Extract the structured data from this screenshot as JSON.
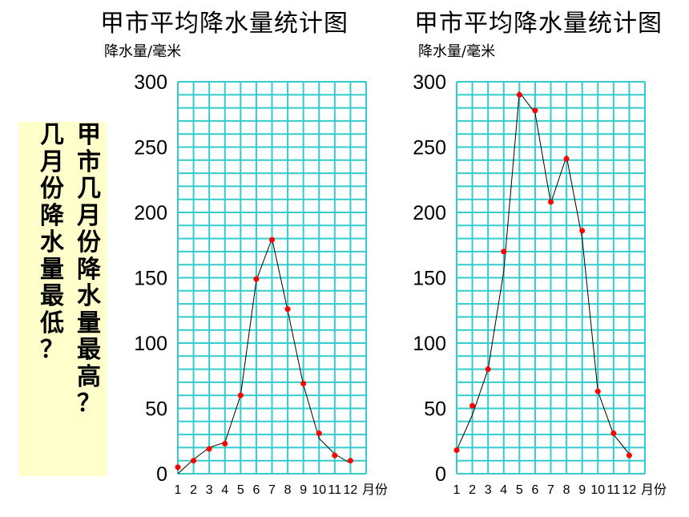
{
  "question": {
    "line1": "甲市几月份降水量最高？",
    "line2": "几月份降水量最低？"
  },
  "chart_data": [
    {
      "type": "line",
      "title": "甲市平均降水量统计图",
      "ylabel": "降水量/毫米",
      "xlabel": "月份",
      "categories": [
        "1",
        "2",
        "3",
        "4",
        "5",
        "6",
        "7",
        "8",
        "9",
        "10",
        "11",
        "12"
      ],
      "values": [
        5,
        10,
        19,
        23,
        60,
        149,
        179,
        126,
        69,
        31,
        14,
        10
      ],
      "line_path": [
        [
          1,
          0
        ],
        [
          2,
          11
        ],
        [
          3,
          20
        ],
        [
          4,
          24
        ],
        [
          5,
          60
        ],
        [
          6,
          148
        ],
        [
          7,
          180
        ],
        [
          8,
          125
        ],
        [
          9,
          68
        ],
        [
          10,
          27
        ],
        [
          11,
          15
        ],
        [
          12,
          8
        ]
      ],
      "yticks": [
        0,
        50,
        100,
        150,
        200,
        250,
        300
      ],
      "ylim": [
        0,
        300
      ],
      "grid": true,
      "grid_color": "#33cccc",
      "point_color": "#ff0000",
      "line_color": "#000000"
    },
    {
      "type": "line",
      "title": "甲市平均降水量统计图",
      "ylabel": "降水量/毫米",
      "xlabel": "月份",
      "categories": [
        "1",
        "2",
        "3",
        "4",
        "5",
        "6",
        "7",
        "8",
        "9",
        "10",
        "11",
        "12"
      ],
      "values": [
        18,
        52,
        80,
        170,
        290,
        278,
        208,
        241,
        186,
        63,
        31,
        14
      ],
      "line_path": [
        [
          1,
          18
        ],
        [
          2,
          45
        ],
        [
          3,
          80
        ],
        [
          4,
          155
        ],
        [
          5,
          292
        ],
        [
          6,
          276
        ],
        [
          7,
          207
        ],
        [
          8,
          243
        ],
        [
          9,
          180
        ],
        [
          10,
          63
        ],
        [
          11,
          30
        ],
        [
          12,
          15
        ]
      ],
      "yticks": [
        0,
        50,
        100,
        150,
        200,
        250,
        300
      ],
      "ylim": [
        0,
        300
      ],
      "grid": true,
      "grid_color": "#33cccc",
      "point_color": "#ff0000",
      "line_color": "#000000"
    }
  ]
}
